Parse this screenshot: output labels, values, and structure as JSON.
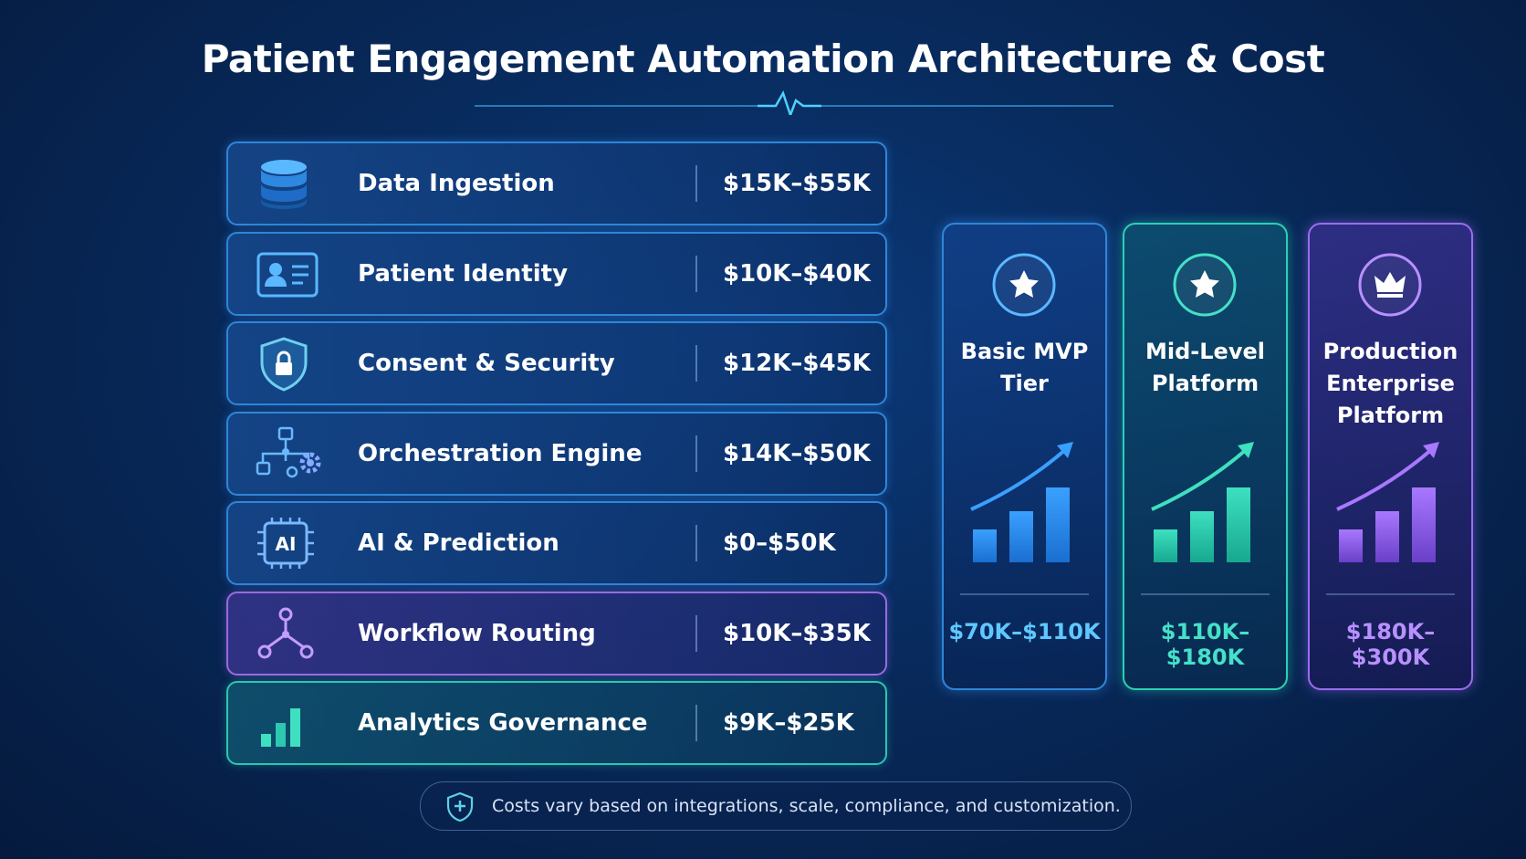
{
  "title": "Patient Engagement Automation Architecture & Cost",
  "components": [
    {
      "name": "Data Ingestion",
      "cost": "$15K–$55K"
    },
    {
      "name": "Patient Identity",
      "cost": "$10K–$40K"
    },
    {
      "name": "Consent & Security",
      "cost": "$12K–$45K"
    },
    {
      "name": "Orchestration Engine",
      "cost": "$14K–$50K"
    },
    {
      "name": "AI & Prediction",
      "cost": "$0–$50K"
    },
    {
      "name": "Workflow Routing",
      "cost": "$10K–$35K"
    },
    {
      "name": "Analytics Governance",
      "cost": "$9K–$25K"
    }
  ],
  "tiers": [
    {
      "name": "Basic MVP Tier",
      "cost": "$70K–$110K"
    },
    {
      "name": "Mid-Level Platform",
      "cost": "$110K–$180K"
    },
    {
      "name": "Production Enterprise Platform",
      "cost": "$180K–$300K"
    }
  ],
  "footnote": "Costs vary based on integrations, scale, compliance, and customization."
}
